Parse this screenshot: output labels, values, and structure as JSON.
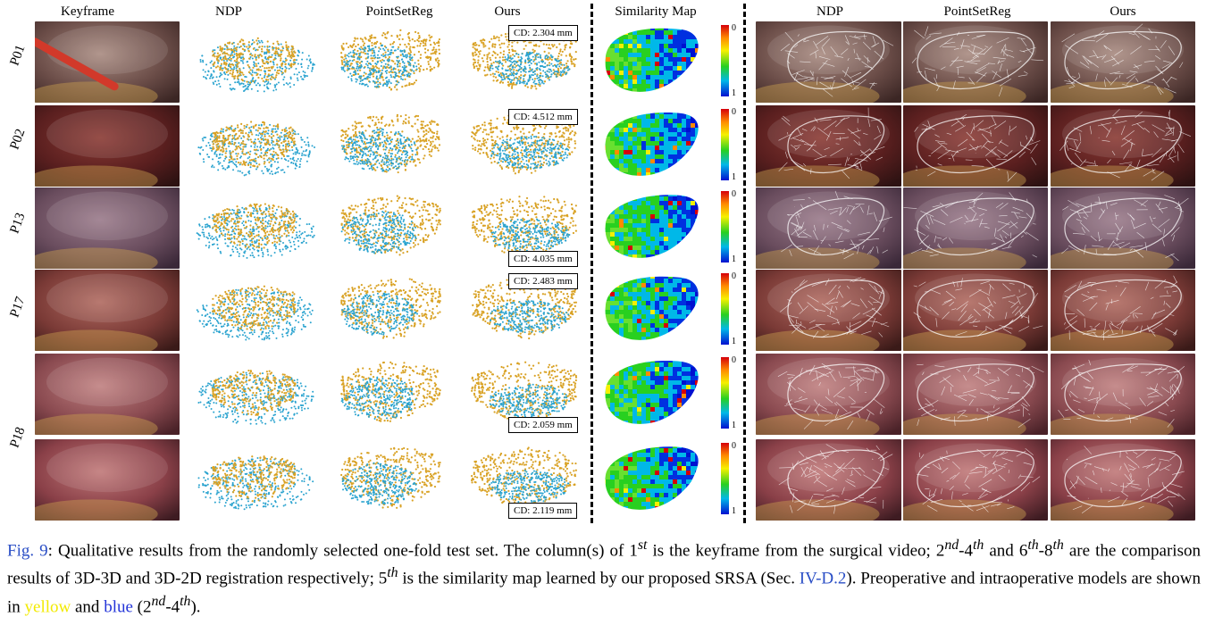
{
  "columns": [
    {
      "key": "keyframe",
      "label": "Keyframe"
    },
    {
      "key": "ndp3d",
      "label": "NDP"
    },
    {
      "key": "psr3d",
      "label": "PointSetReg"
    },
    {
      "key": "ours3d",
      "label": "Ours"
    },
    {
      "key": "sim",
      "label": "Similarity Map"
    },
    {
      "key": "ndp2d",
      "label": "NDP"
    },
    {
      "key": "psr2d",
      "label": "PointSetReg"
    },
    {
      "key": "ours2d",
      "label": "Ours"
    }
  ],
  "patient_labels": [
    "P01",
    "P02",
    "P13",
    "P17",
    "P18"
  ],
  "rows": [
    {
      "cd": "CD: 2.304 mm",
      "cd_pos": "top"
    },
    {
      "cd": "CD: 4.512 mm",
      "cd_pos": "top"
    },
    {
      "cd": "CD: 4.035 mm",
      "cd_pos": "bottom"
    },
    {
      "cd": "CD: 2.483 mm",
      "cd_pos": "top"
    },
    {
      "cd": "CD: 2.059 mm",
      "cd_pos": "bottom"
    },
    {
      "cd": "CD: 2.119 mm",
      "cd_pos": "bottom"
    }
  ],
  "colorbar": {
    "top": "0",
    "bottom": "1"
  },
  "colors": {
    "preop": "#d9a225",
    "intraop": "#2aa3cf",
    "caption_accent": "#2b4fc6",
    "yellow_word": "#f2ea00",
    "blue_word": "#2233d8"
  },
  "caption": {
    "lead": "Fig. 9",
    "p1": ": Qualitative results from the randomly selected one-fold test set. The column(s) of 1",
    "s1": "st",
    "p2": " is the keyframe from the surgical video; 2",
    "s2": "nd",
    "p3": "-4",
    "s3": "th",
    "p4": " and 6",
    "s4": "th",
    "p5": "-8",
    "s5": "th",
    "p6": " are the comparison results of 3D-3D and 3D-2D registration respectively; 5",
    "s6": "th",
    "p7": " is the similarity map learned by our proposed SRSA (Sec. ",
    "ref": "IV-D.2",
    "p8": "). Preoperative and intraoperative models are shown in ",
    "yellow": "yellow",
    "p9": " and ",
    "blue": "blue",
    "p10": " (2",
    "s7": "nd",
    "p11": "-4",
    "s8": "th",
    "p12": ")."
  }
}
